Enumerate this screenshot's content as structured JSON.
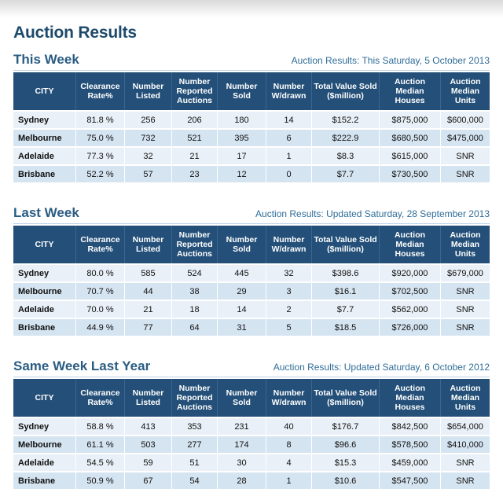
{
  "page_title": "Auction Results",
  "columns": [
    "CITY",
    "Clearance Rate%",
    "Number Listed",
    "Number Reported Auctions",
    "Number Sold",
    "Number W/drawn",
    "Total Value Sold ($million)",
    "Auction Median Houses",
    "Auction Median Units"
  ],
  "sections": [
    {
      "title": "This Week",
      "subtitle": "Auction Results: This Saturday, 5 October 2013",
      "rows": [
        [
          "Sydney",
          "81.8 %",
          "256",
          "206",
          "180",
          "14",
          "$152.2",
          "$875,000",
          "$600,000"
        ],
        [
          "Melbourne",
          "75.0 %",
          "732",
          "521",
          "395",
          "6",
          "$222.9",
          "$680,500",
          "$475,000"
        ],
        [
          "Adelaide",
          "77.3 %",
          "32",
          "21",
          "17",
          "1",
          "$8.3",
          "$615,000",
          "SNR"
        ],
        [
          "Brisbane",
          "52.2 %",
          "57",
          "23",
          "12",
          "0",
          "$7.7",
          "$730,500",
          "SNR"
        ]
      ]
    },
    {
      "title": "Last Week",
      "subtitle": "Auction Results: Updated Saturday, 28 September 2013",
      "rows": [
        [
          "Sydney",
          "80.0 %",
          "585",
          "524",
          "445",
          "32",
          "$398.6",
          "$920,000",
          "$679,000"
        ],
        [
          "Melbourne",
          "70.7 %",
          "44",
          "38",
          "29",
          "3",
          "$16.1",
          "$702,500",
          "SNR"
        ],
        [
          "Adelaide",
          "70.0 %",
          "21",
          "18",
          "14",
          "2",
          "$7.7",
          "$562,000",
          "SNR"
        ],
        [
          "Brisbane",
          "44.9 %",
          "77",
          "64",
          "31",
          "5",
          "$18.5",
          "$726,000",
          "SNR"
        ]
      ]
    },
    {
      "title": "Same Week Last Year",
      "subtitle": "Auction Results: Updated Saturday, 6 October 2012",
      "rows": [
        [
          "Sydney",
          "58.8 %",
          "413",
          "353",
          "231",
          "40",
          "$176.7",
          "$842,500",
          "$654,000"
        ],
        [
          "Melbourne",
          "61.1 %",
          "503",
          "277",
          "174",
          "8",
          "$96.6",
          "$578,500",
          "$410,000"
        ],
        [
          "Adelaide",
          "54.5 %",
          "59",
          "51",
          "30",
          "4",
          "$15.3",
          "$459,000",
          "SNR"
        ],
        [
          "Brisbane",
          "50.9 %",
          "67",
          "54",
          "28",
          "1",
          "$10.6",
          "$547,500",
          "SNR"
        ]
      ]
    }
  ]
}
